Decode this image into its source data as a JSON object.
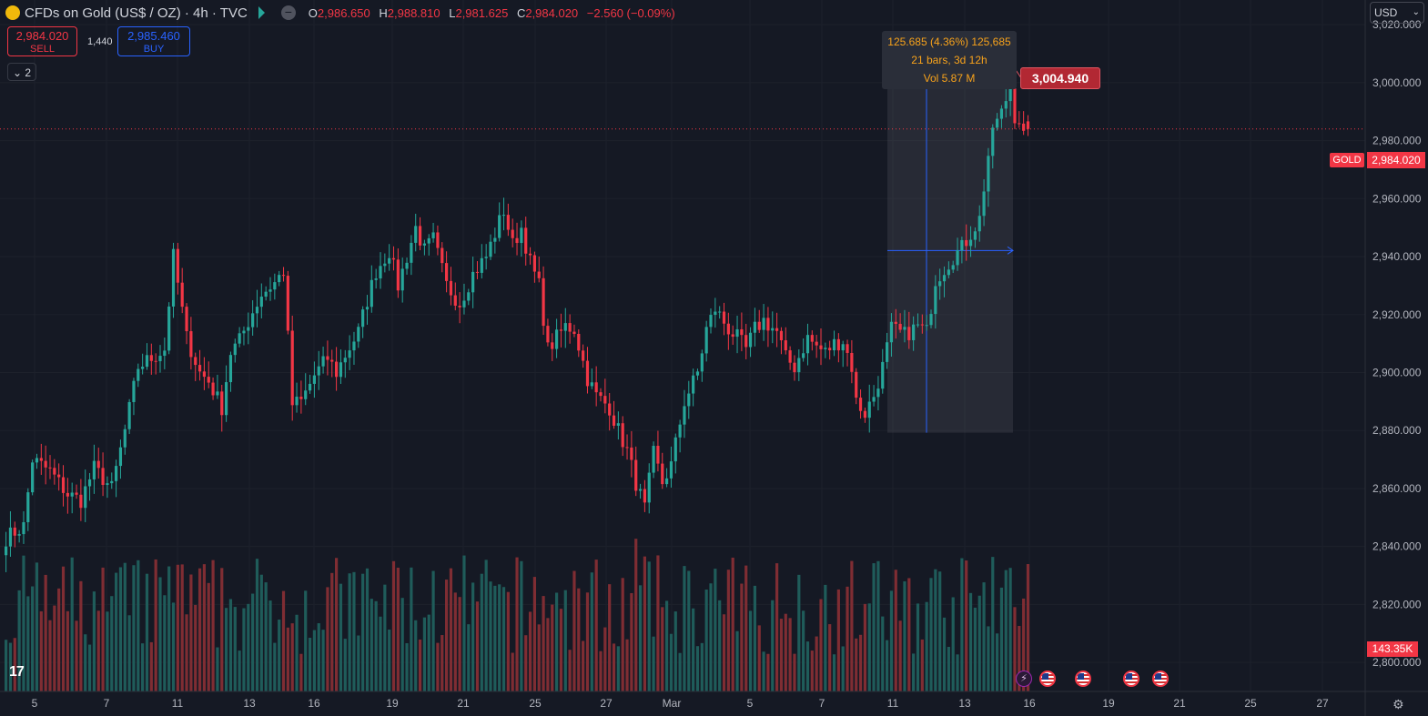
{
  "header": {
    "symbol_title": "CFDs on Gold (US$ / OZ) · 4h · TVC",
    "ohlc": [
      {
        "k": "O",
        "v": "2,986.650"
      },
      {
        "k": "H",
        "v": "2,988.810"
      },
      {
        "k": "L",
        "v": "2,981.625"
      },
      {
        "k": "C",
        "v": "2,984.020"
      }
    ],
    "change": "−2.560 (−0.09%)",
    "sell_price": "2,984.020",
    "sell_label": "SELL",
    "spread": "1,440",
    "buy_price": "2,985.460",
    "buy_label": "BUY",
    "collapse_label": "2"
  },
  "currency_selector": {
    "value": "USD"
  },
  "measure_tool": {
    "line1": "125.685 (4.36%) 125,685",
    "line2": "21 bars, 3d 12h",
    "line3": "Vol 5.87 M"
  },
  "high_callout": "3,004.940",
  "price_tags": {
    "symbol": "GOLD",
    "last_price": "2,984.020",
    "volume": "143.35K"
  },
  "colors": {
    "background": "#151924",
    "up": "#26a69a",
    "down": "#f23645",
    "vol_up": "#1f5c5a",
    "vol_down": "#7f2d33",
    "measure_accent": "#2962ff",
    "measure_text": "#f7a21b"
  },
  "chart_data": {
    "type": "candlestick",
    "timeframe": "4h",
    "y_ticks": [
      "2,800.000",
      "2,820.000",
      "2,840.000",
      "2,860.000",
      "2,880.000",
      "2,900.000",
      "2,920.000",
      "2,940.000",
      "2,960.000",
      "2,980.000",
      "3,000.000",
      "3,020.000"
    ],
    "y_tick_values": [
      2800,
      2820,
      2840,
      2860,
      2880,
      2900,
      2920,
      2940,
      2960,
      2980,
      3000,
      3020
    ],
    "x_ticks": [
      "5",
      "7",
      "11",
      "13",
      "16",
      "19",
      "21",
      "25",
      "27",
      "Mar",
      "5",
      "7",
      "11",
      "13",
      "16",
      "19",
      "21",
      "25",
      "27"
    ],
    "ylim": [
      2790,
      3026
    ],
    "last_price": 2984.02,
    "measured_range": {
      "low": 2879.255,
      "high": 3004.94,
      "change": 125.685,
      "percent": 4.36,
      "bars": 21
    },
    "anchors": [
      [
        0,
        2843
      ],
      [
        4,
        2847
      ],
      [
        6,
        2870
      ],
      [
        10,
        2866
      ],
      [
        14,
        2858
      ],
      [
        17,
        2856
      ],
      [
        20,
        2867
      ],
      [
        24,
        2860
      ],
      [
        27,
        2880
      ],
      [
        30,
        2902
      ],
      [
        33,
        2905
      ],
      [
        36,
        2908
      ],
      [
        38,
        2940
      ],
      [
        41,
        2912
      ],
      [
        44,
        2900
      ],
      [
        46,
        2897
      ],
      [
        49,
        2888
      ],
      [
        51,
        2907
      ],
      [
        53,
        2911
      ],
      [
        56,
        2921
      ],
      [
        58,
        2927
      ],
      [
        61,
        2931
      ],
      [
        63,
        2935
      ],
      [
        65,
        2889
      ],
      [
        67,
        2890
      ],
      [
        70,
        2899
      ],
      [
        73,
        2905
      ],
      [
        75,
        2900
      ],
      [
        77,
        2906
      ],
      [
        80,
        2914
      ],
      [
        82,
        2925
      ],
      [
        84,
        2935
      ],
      [
        87,
        2942
      ],
      [
        89,
        2930
      ],
      [
        91,
        2940
      ],
      [
        93,
        2950
      ],
      [
        95,
        2942
      ],
      [
        97,
        2946
      ],
      [
        100,
        2930
      ],
      [
        103,
        2924
      ],
      [
        106,
        2934
      ],
      [
        109,
        2940
      ],
      [
        111,
        2948
      ],
      [
        113,
        2956
      ],
      [
        115,
        2944
      ],
      [
        117,
        2950
      ],
      [
        119,
        2938
      ],
      [
        121,
        2930
      ],
      [
        123,
        2908
      ],
      [
        125,
        2912
      ],
      [
        127,
        2916
      ],
      [
        129,
        2915
      ],
      [
        132,
        2898
      ],
      [
        134,
        2892
      ],
      [
        137,
        2888
      ],
      [
        139,
        2880
      ],
      [
        141,
        2873
      ],
      [
        143,
        2862
      ],
      [
        145,
        2853
      ],
      [
        147,
        2872
      ],
      [
        149,
        2862
      ],
      [
        151,
        2868
      ],
      [
        154,
        2890
      ],
      [
        157,
        2900
      ],
      [
        159,
        2915
      ],
      [
        161,
        2922
      ],
      [
        164,
        2915
      ],
      [
        166,
        2912
      ],
      [
        168,
        2908
      ],
      [
        170,
        2915
      ],
      [
        172,
        2918
      ],
      [
        175,
        2914
      ],
      [
        177,
        2905
      ],
      [
        179,
        2902
      ],
      [
        182,
        2912
      ],
      [
        184,
        2909
      ],
      [
        186,
        2907
      ],
      [
        188,
        2910
      ],
      [
        190,
        2911
      ],
      [
        192,
        2902
      ],
      [
        193,
        2890
      ],
      [
        195,
        2886
      ],
      [
        197,
        2892
      ],
      [
        199,
        2902
      ],
      [
        201,
        2915
      ],
      [
        204,
        2913
      ],
      [
        207,
        2916
      ],
      [
        209,
        2914
      ],
      [
        211,
        2932
      ],
      [
        213,
        2936
      ],
      [
        215,
        2940
      ],
      [
        217,
        2943
      ],
      [
        219,
        2948
      ],
      [
        221,
        2953
      ],
      [
        223,
        2975
      ],
      [
        225,
        2988
      ],
      [
        227,
        2992
      ],
      [
        229,
        2992
      ],
      [
        231,
        2985
      ],
      [
        232,
        2984.02
      ]
    ]
  }
}
